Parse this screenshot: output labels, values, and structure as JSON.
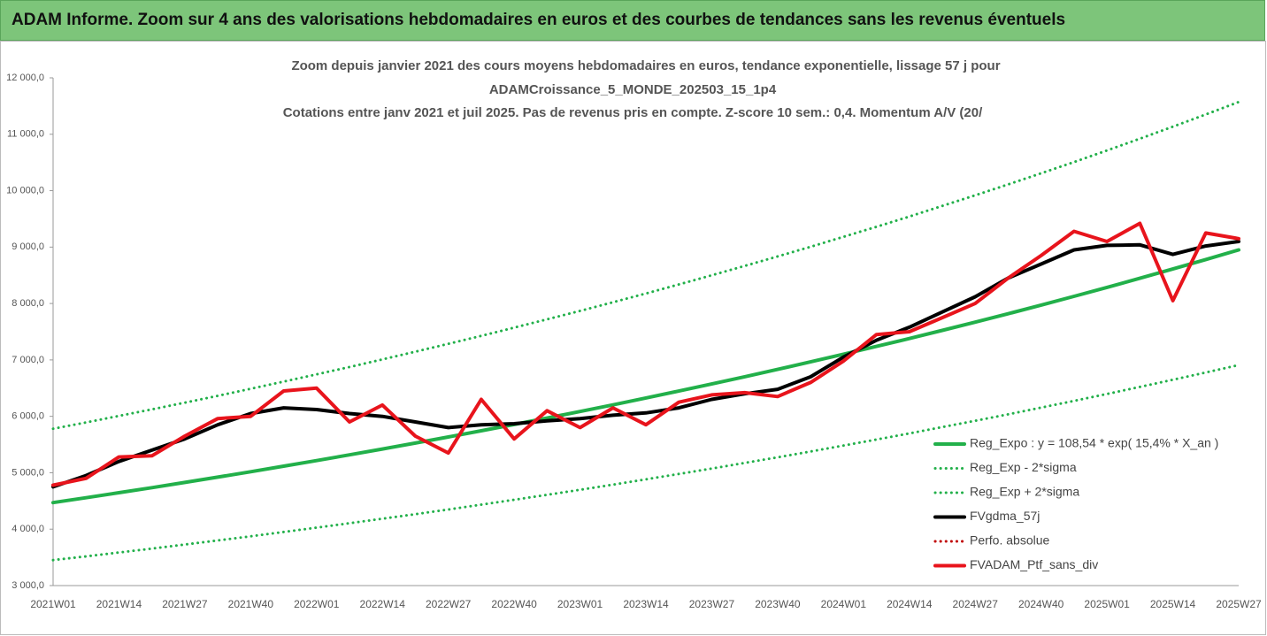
{
  "chart_data": {
    "type": "line",
    "header": "ADAM Informe. Zoom sur 4 ans des valorisations hebdomadaires en euros et des courbes de tendances sans les revenus éventuels",
    "title": [
      "Zoom depuis janvier 2021 des cours moyens hebdomadaires  en euros, tendance exponentielle, lissage 57 j pour",
      "ADAMCroissance_5_MONDE_202503_15_1p4",
      "Cotations entre janv 2021 et juil 2025. Pas de revenus pris en compte. Z-score 10 sem.: 0,4. Momentum A/V (20/"
    ],
    "categories": [
      "2021W01",
      null,
      "2021W14",
      null,
      "2021W27",
      null,
      "2021W40",
      null,
      "2022W01",
      null,
      "2022W14",
      null,
      "2022W27",
      null,
      "2022W40",
      null,
      "2023W01",
      null,
      "2023W14",
      null,
      "2023W27",
      null,
      "2023W40",
      null,
      "2024W01",
      null,
      "2024W14",
      null,
      "2024W27",
      null,
      "2024W40",
      null,
      "2025W01",
      null,
      "2025W14",
      null,
      "2025W27"
    ],
    "ylim": [
      3000,
      12000
    ],
    "yticks": [
      {
        "value": 3000,
        "label": "3 000,0"
      },
      {
        "value": 4000,
        "label": "4 000,0"
      },
      {
        "value": 5000,
        "label": "5 000,0"
      },
      {
        "value": 6000,
        "label": "6 000,0"
      },
      {
        "value": 7000,
        "label": "7 000,0"
      },
      {
        "value": 8000,
        "label": "8 000,0"
      },
      {
        "value": 9000,
        "label": "9 000,0"
      },
      {
        "value": 10000,
        "label": "10 000,0"
      },
      {
        "value": 11000,
        "label": "11 000,0"
      },
      {
        "value": 12000,
        "label": "12 000,0"
      }
    ],
    "series": [
      {
        "name": "Reg_Expo : y = 108,54 * exp( 15,4% *  X_an )",
        "color": "#22b04a",
        "style": "solid",
        "values": [
          4470,
          4557,
          4646,
          4736,
          4828,
          4922,
          5018,
          5116,
          5216,
          5317,
          5421,
          5526,
          5634,
          5744,
          5856,
          5970,
          6086,
          6204,
          6325,
          6448,
          6574,
          6702,
          6832,
          6965,
          7101,
          7239,
          7380,
          7524,
          7670,
          7819,
          7972,
          8127,
          8285,
          8447,
          8611,
          8779,
          8950
        ]
      },
      {
        "name": "Reg_Exp - 2*sigma",
        "color": "#22b04a",
        "style": "dotted",
        "values": [
          3451,
          3518,
          3587,
          3656,
          3727,
          3800,
          3874,
          3950,
          4027,
          4105,
          4185,
          4266,
          4349,
          4434,
          4521,
          4609,
          4698,
          4789,
          4883,
          4978,
          5075,
          5174,
          5274,
          5377,
          5482,
          5588,
          5697,
          5809,
          5921,
          6036,
          6154,
          6274,
          6396,
          6521,
          6648,
          6777,
          6909
        ]
      },
      {
        "name": "Reg_Exp + 2*sigma",
        "color": "#22b04a",
        "style": "dotted",
        "values": [
          5780,
          5892,
          6007,
          6124,
          6243,
          6364,
          6488,
          6615,
          6744,
          6875,
          7009,
          7145,
          7285,
          7427,
          7572,
          7719,
          7869,
          8022,
          8178,
          8337,
          8500,
          8666,
          8834,
          9006,
          9182,
          9360,
          9542,
          9729,
          9917,
          10110,
          10308,
          10508,
          10713,
          10922,
          11134,
          11351,
          11572
        ]
      },
      {
        "name": "FVgdma_57j",
        "color": "#000000",
        "style": "solid",
        "values": [
          4750,
          4950,
          5200,
          5400,
          5600,
          5850,
          6050,
          6150,
          6120,
          6050,
          6000,
          5900,
          5800,
          5850,
          5870,
          5920,
          5960,
          6020,
          6060,
          6150,
          6300,
          6400,
          6480,
          6700,
          7050,
          7350,
          7580,
          7850,
          8120,
          8450,
          8700,
          8950,
          9030,
          9040,
          8870,
          9020,
          9100
        ]
      },
      {
        "name": "Perfo. absolue",
        "color": "#c00000",
        "style": "dotted",
        "values": [
          null,
          null,
          null,
          null,
          null,
          null,
          null,
          null,
          null,
          null,
          null,
          null,
          null,
          null,
          null,
          null,
          null,
          null,
          null,
          null,
          null,
          null,
          null,
          null,
          null,
          null,
          null,
          null,
          null,
          null,
          null,
          null,
          null,
          null,
          null,
          null,
          null
        ]
      },
      {
        "name": "FVADAM_Ptf_sans_div",
        "color": "#e8141c",
        "style": "solid",
        "values": [
          4780,
          4900,
          5280,
          5300,
          5650,
          5960,
          6000,
          6450,
          6500,
          5900,
          6200,
          5650,
          5350,
          6300,
          5600,
          6100,
          5800,
          6150,
          5850,
          6250,
          6380,
          6420,
          6350,
          6600,
          6980,
          7450,
          7500,
          7750,
          8000,
          8450,
          8850,
          9280,
          9100,
          9420,
          8050,
          9250,
          9150
        ]
      }
    ]
  }
}
